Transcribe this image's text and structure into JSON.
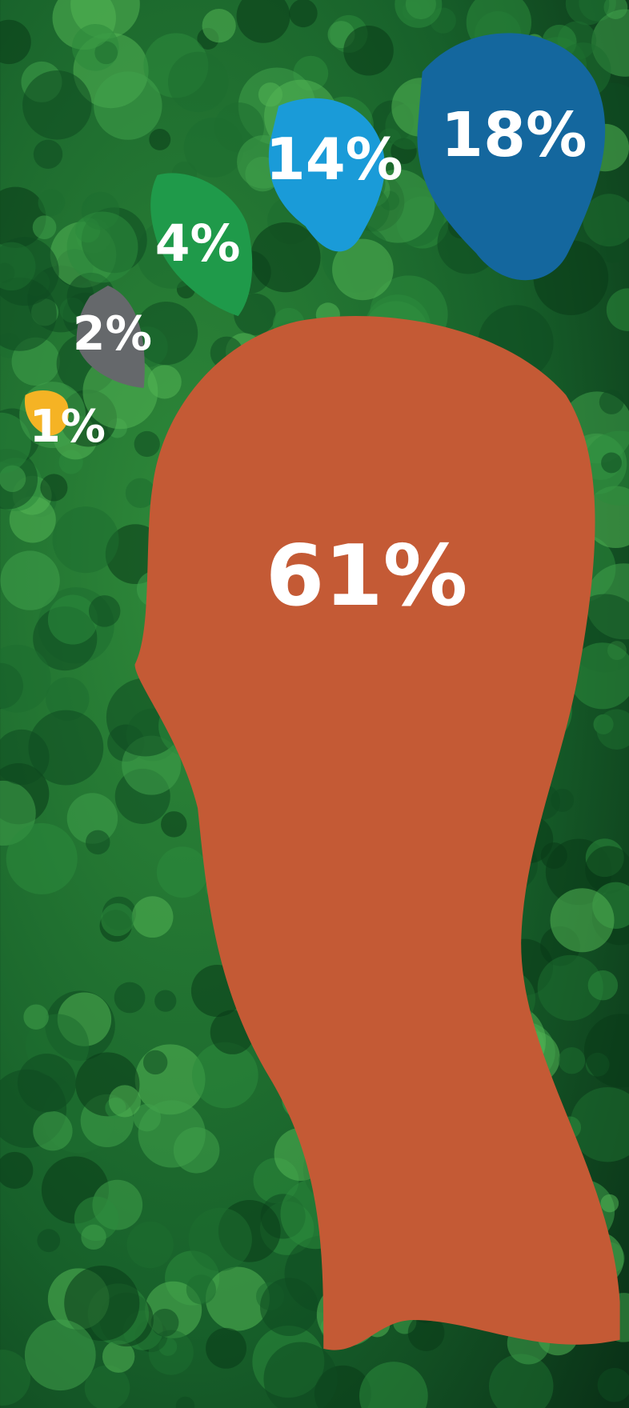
{
  "chart_data": {
    "type": "footprint",
    "values": [
      1,
      2,
      4,
      14,
      18,
      61
    ],
    "value_labels": [
      "1%",
      "2%",
      "4%",
      "14%",
      "18%",
      "61%"
    ],
    "colors": [
      "#f5b324",
      "#65686b",
      "#1f9a4a",
      "#1a9bd8",
      "#14679e",
      "#c45a35"
    ]
  }
}
